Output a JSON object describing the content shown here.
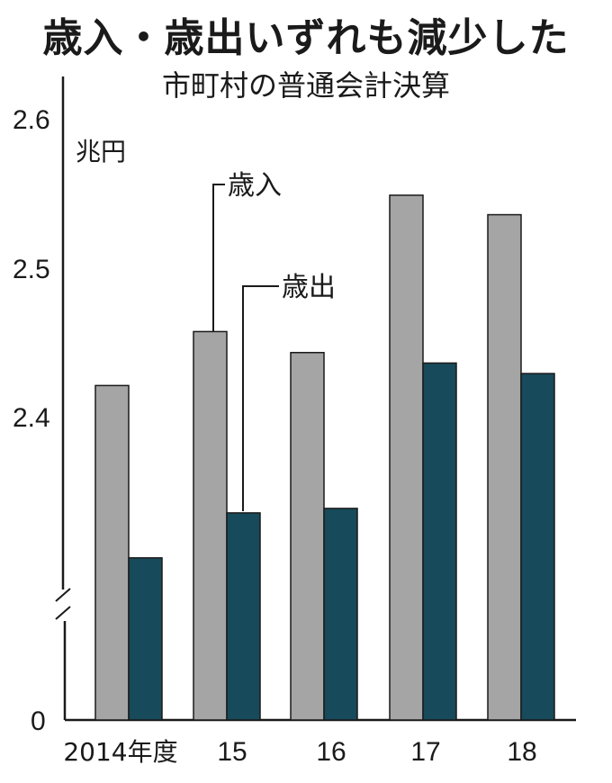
{
  "title": "歳入・歳出いずれも減少した",
  "subtitle": "市町村の普通会計決算",
  "chart_data": {
    "type": "bar",
    "unit": "兆円",
    "categories": [
      "2014年度",
      "15",
      "16",
      "17",
      "18"
    ],
    "series": [
      {
        "name": "歳入",
        "values": [
          2.422,
          2.458,
          2.444,
          2.549,
          2.536
        ],
        "color": "#a5a5a5"
      },
      {
        "name": "歳出",
        "values": [
          2.307,
          2.337,
          2.34,
          2.437,
          2.43
        ],
        "color": "#174a5a"
      }
    ],
    "y_ticks": [
      "2.6",
      "2.5",
      "2.4",
      "0"
    ],
    "ylim": [
      0,
      2.6
    ],
    "axis_break": true,
    "grid": false,
    "legend": "callout labels"
  }
}
